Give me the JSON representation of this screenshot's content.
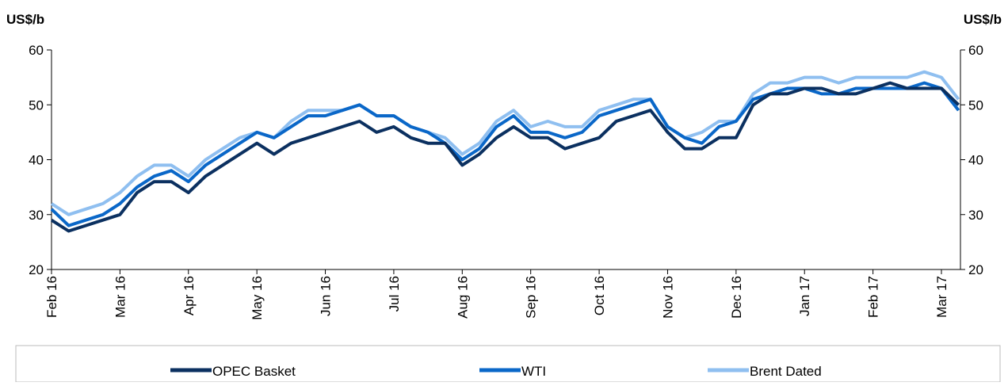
{
  "chart_data": {
    "type": "line",
    "y_label": "US$/b",
    "y2_label": "US$/b",
    "categories": [
      "Feb 16",
      null,
      null,
      null,
      "Mar 16",
      null,
      null,
      null,
      "Apr 16",
      null,
      null,
      null,
      "May 16",
      null,
      null,
      null,
      "Jun 16",
      null,
      null,
      null,
      "Jul 16",
      null,
      null,
      null,
      "Aug 16",
      null,
      null,
      null,
      "Sep 16",
      null,
      null,
      null,
      "Oct 16",
      null,
      null,
      null,
      "Nov 16",
      null,
      null,
      null,
      "Dec 16",
      null,
      null,
      null,
      "Jan 17",
      null,
      null,
      null,
      "Feb 17",
      null,
      null,
      null,
      "Mar 17",
      null
    ],
    "series": [
      {
        "name": "OPEC Basket",
        "color": "#0b3060",
        "values": [
          29,
          27,
          28,
          29,
          30,
          34,
          36,
          36,
          34,
          37,
          39,
          41,
          43,
          41,
          43,
          44,
          45,
          46,
          47,
          45,
          46,
          44,
          43,
          43,
          39,
          41,
          44,
          46,
          44,
          44,
          42,
          43,
          44,
          47,
          48,
          49,
          45,
          42,
          42,
          44,
          44,
          50,
          52,
          52,
          53,
          53,
          52,
          52,
          53,
          54,
          53,
          53,
          53,
          50
        ]
      },
      {
        "name": "WTI",
        "color": "#0a67c8",
        "values": [
          31,
          28,
          29,
          30,
          32,
          35,
          37,
          38,
          36,
          39,
          41,
          43,
          45,
          44,
          46,
          48,
          48,
          49,
          50,
          48,
          48,
          46,
          45,
          43,
          40,
          42,
          46,
          48,
          45,
          45,
          44,
          45,
          48,
          49,
          50,
          51,
          46,
          44,
          43,
          46,
          47,
          51,
          52,
          53,
          53,
          52,
          52,
          53,
          53,
          53,
          53,
          54,
          53,
          49
        ]
      },
      {
        "name": "Brent Dated",
        "color": "#8fbff0",
        "values": [
          32,
          30,
          31,
          32,
          34,
          37,
          39,
          39,
          37,
          40,
          42,
          44,
          45,
          44,
          47,
          49,
          49,
          49,
          50,
          48,
          48,
          46,
          45,
          44,
          41,
          43,
          47,
          49,
          46,
          47,
          46,
          46,
          49,
          50,
          51,
          51,
          46,
          44,
          45,
          47,
          47,
          52,
          54,
          54,
          55,
          55,
          54,
          55,
          55,
          55,
          55,
          56,
          55,
          51
        ]
      }
    ],
    "ylim": [
      20,
      60
    ],
    "yticks": [
      20,
      30,
      40,
      50,
      60
    ],
    "y2lim": [
      20,
      60
    ],
    "y2ticks": [
      20,
      30,
      40,
      50,
      60
    ],
    "legend": "bottom"
  }
}
